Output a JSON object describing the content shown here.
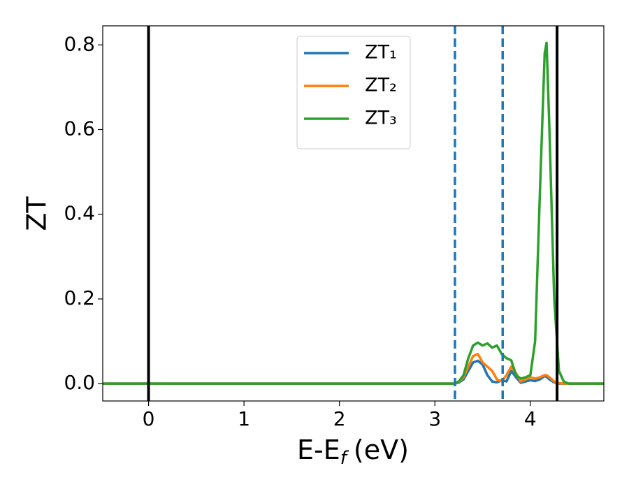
{
  "chart_data": {
    "type": "line",
    "ylabel": "ZT",
    "xlabel": {
      "main": "E-E",
      "sub": "f",
      "unit": "(eV)"
    },
    "x": [
      -0.48,
      3.0,
      3.2,
      3.25,
      3.3,
      3.35,
      3.4,
      3.45,
      3.5,
      3.55,
      3.6,
      3.65,
      3.7,
      3.75,
      3.8,
      3.85,
      3.9,
      3.95,
      4.0,
      4.05,
      4.1,
      4.15,
      4.17,
      4.2,
      4.25,
      4.3,
      4.35,
      4.4,
      4.5,
      4.77
    ],
    "series": [
      {
        "name": "ZT₁",
        "color": "#1f77b4",
        "values": [
          0,
          0,
          0,
          0.002,
          0.01,
          0.03,
          0.05,
          0.054,
          0.045,
          0.02,
          0.005,
          0.003,
          0.008,
          0.005,
          0.03,
          0.015,
          0.002,
          0.005,
          0.008,
          0.006,
          0.01,
          0.018,
          0.016,
          0.01,
          0.003,
          0,
          0,
          0,
          0,
          0
        ]
      },
      {
        "name": "ZT₂",
        "color": "#ff7f0e",
        "values": [
          0,
          0,
          0,
          0.003,
          0.015,
          0.04,
          0.065,
          0.07,
          0.05,
          0.04,
          0.03,
          0.01,
          0.005,
          0.02,
          0.04,
          0.025,
          0.005,
          0.01,
          0.015,
          0.012,
          0.015,
          0.02,
          0.02,
          0.015,
          0.005,
          0.001,
          0,
          0,
          0,
          0
        ]
      },
      {
        "name": "ZT₃",
        "color": "#2ca02c",
        "values": [
          0,
          0,
          0,
          0.005,
          0.02,
          0.06,
          0.09,
          0.097,
          0.09,
          0.095,
          0.085,
          0.09,
          0.07,
          0.06,
          0.055,
          0.02,
          0.012,
          0.015,
          0.02,
          0.1,
          0.45,
          0.78,
          0.805,
          0.6,
          0.2,
          0.03,
          0.005,
          0,
          0,
          0
        ]
      }
    ],
    "vlines": [
      {
        "x": 0,
        "color": "#000000",
        "style": "solid"
      },
      {
        "x": 4.28,
        "color": "#000000",
        "style": "solid"
      },
      {
        "x": 3.21,
        "color": "#1f77b4",
        "style": "dashed"
      },
      {
        "x": 3.71,
        "color": "#1f77b4",
        "style": "dashed"
      }
    ],
    "xlim": [
      -0.48,
      4.77
    ],
    "ylim": [
      -0.041,
      0.845
    ],
    "xticks": [
      0,
      1,
      2,
      3,
      4
    ],
    "yticks": [
      {
        "value": 0,
        "label": "0.0"
      },
      0.2,
      0.4,
      0.6,
      0.8
    ],
    "grid": false,
    "legend": "upper center"
  }
}
